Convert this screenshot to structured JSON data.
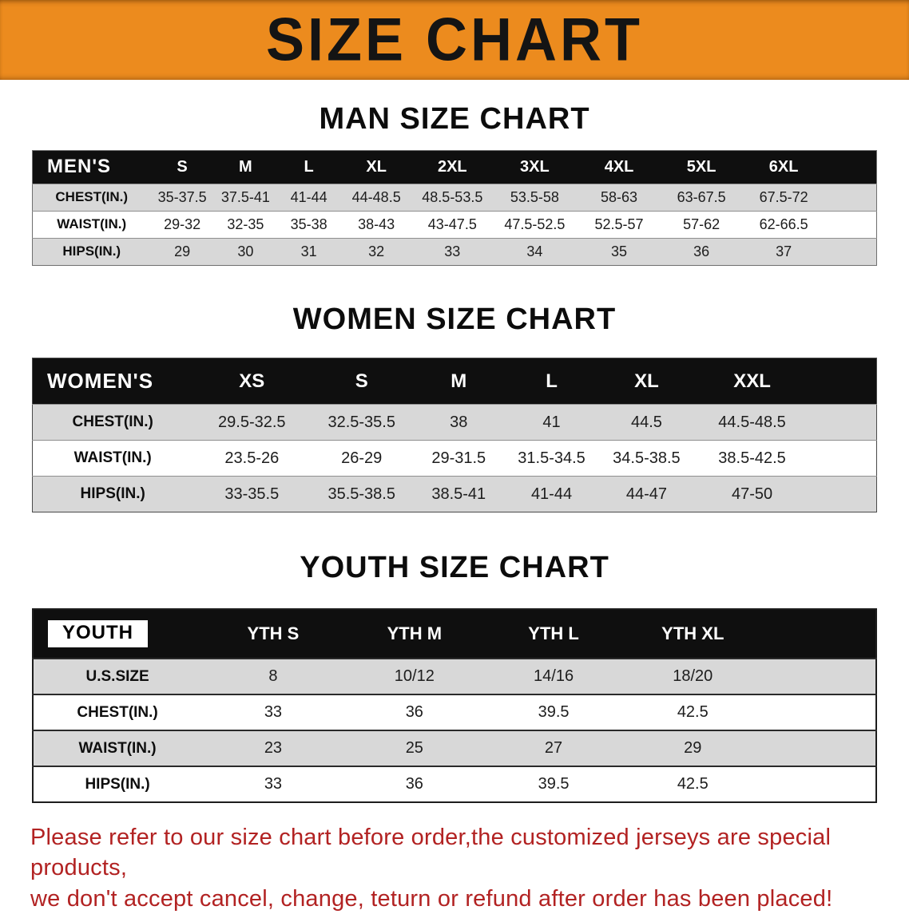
{
  "colors": {
    "banner_bg": "#EC8B1E",
    "header_bg": "#0F0F0F",
    "stripe": "#D8D8D8",
    "disclaimer_red": "#B22222"
  },
  "banner": {
    "title": "SIZE CHART"
  },
  "sections": [
    {
      "title": "MAN SIZE CHART",
      "header_label": "MEN'S",
      "label_highlight": false,
      "columns": [
        "S",
        "M",
        "L",
        "XL",
        "2XL",
        "3XL",
        "4XL",
        "5XL",
        "6XL"
      ],
      "rows": [
        {
          "label": "CHEST(IN.)",
          "values": [
            "35-37.5",
            "37.5-41",
            "41-44",
            "44-48.5",
            "48.5-53.5",
            "53.5-58",
            "58-63",
            "63-67.5",
            "67.5-72"
          ]
        },
        {
          "label": "WAIST(IN.)",
          "values": [
            "29-32",
            "32-35",
            "35-38",
            "38-43",
            "43-47.5",
            "47.5-52.5",
            "52.5-57",
            "57-62",
            "62-66.5"
          ]
        },
        {
          "label": "HIPS(IN.)",
          "values": [
            "29",
            "30",
            "31",
            "32",
            "33",
            "34",
            "35",
            "36",
            "37"
          ]
        }
      ]
    },
    {
      "title": "WOMEN SIZE CHART",
      "header_label": "WOMEN'S",
      "label_highlight": false,
      "columns": [
        "XS",
        "S",
        "M",
        "L",
        "XL",
        "XXL"
      ],
      "rows": [
        {
          "label": "CHEST(IN.)",
          "values": [
            "29.5-32.5",
            "32.5-35.5",
            "38",
            "41",
            "44.5",
            "44.5-48.5"
          ]
        },
        {
          "label": "WAIST(IN.)",
          "values": [
            "23.5-26",
            "26-29",
            "29-31.5",
            "31.5-34.5",
            "34.5-38.5",
            "38.5-42.5"
          ]
        },
        {
          "label": "HIPS(IN.)",
          "values": [
            "33-35.5",
            "35.5-38.5",
            "38.5-41",
            "41-44",
            "44-47",
            "47-50"
          ]
        }
      ]
    },
    {
      "title": "YOUTH SIZE CHART",
      "header_label": "YOUTH",
      "label_highlight": true,
      "columns": [
        "YTH S",
        "YTH M",
        "YTH L",
        "YTH XL"
      ],
      "rows": [
        {
          "label": "U.S.SIZE",
          "values": [
            "8",
            "10/12",
            "14/16",
            "18/20"
          ]
        },
        {
          "label": "CHEST(IN.)",
          "values": [
            "33",
            "36",
            "39.5",
            "42.5"
          ]
        },
        {
          "label": "WAIST(IN.)",
          "values": [
            "23",
            "25",
            "27",
            "29"
          ]
        },
        {
          "label": "HIPS(IN.)",
          "values": [
            "33",
            "36",
            "39.5",
            "42.5"
          ]
        }
      ]
    }
  ],
  "disclaimer": {
    "line1": "Please refer to our size chart before order,the customized jerseys are special products,",
    "line2": "we don't accept cancel, change, teturn or refund after order has been placed!"
  }
}
